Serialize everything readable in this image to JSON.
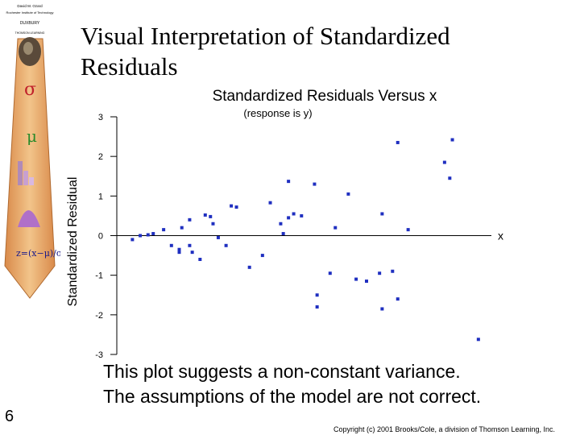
{
  "slide": {
    "title_line1": "Visual Interpretation of Standardized",
    "title_line2": "Residuals",
    "page_number": "6",
    "caption_line1": "This plot suggests a non-constant variance.",
    "caption_line2": "The assumptions of the model are not correct.",
    "copyright": "Copyright (c) 2001 Brooks/Cole, a division of Thomson Learning, Inc."
  },
  "logo": {
    "publisher_line1": "David M. Ozard",
    "publisher_line2": "Rochester Institute of Technology",
    "publisher_line3": "DUXBURY",
    "publisher_line4": "THOMSON LEARNING",
    "symbol_sigma": "σ",
    "symbol_mu": "μ"
  },
  "colors": {
    "points": "#1f2fc0",
    "tie_orange": "#e8b070",
    "tie_dark": "#c87a3c"
  },
  "chart_data": {
    "type": "scatter",
    "title": "Standardized Residuals Versus x",
    "subtitle": "(response is y)",
    "ylabel": "Standardized Residual",
    "xlabel": "x",
    "ylim": [
      -3,
      3
    ],
    "yticks": [
      "3",
      "2",
      "1",
      "0",
      "-1",
      "-2",
      "-3"
    ],
    "grid": false,
    "series": [
      {
        "points": [
          [
            1.0,
            -0.1
          ],
          [
            1.3,
            0.0
          ],
          [
            1.6,
            0.02
          ],
          [
            1.8,
            0.05
          ],
          [
            2.2,
            0.15
          ],
          [
            2.5,
            -0.25
          ],
          [
            2.8,
            -0.35
          ],
          [
            2.8,
            -0.42
          ],
          [
            2.9,
            0.2
          ],
          [
            3.2,
            -0.25
          ],
          [
            3.2,
            0.4
          ],
          [
            3.3,
            -0.42
          ],
          [
            3.6,
            -0.6
          ],
          [
            3.8,
            0.52
          ],
          [
            4.0,
            0.48
          ],
          [
            4.1,
            0.3
          ],
          [
            4.3,
            -0.05
          ],
          [
            4.6,
            -0.25
          ],
          [
            4.8,
            0.75
          ],
          [
            5.0,
            0.72
          ],
          [
            5.5,
            -0.8
          ],
          [
            6.0,
            -0.5
          ],
          [
            6.3,
            0.83
          ],
          [
            6.7,
            0.3
          ],
          [
            6.8,
            0.05
          ],
          [
            7.0,
            1.37
          ],
          [
            7.0,
            0.45
          ],
          [
            7.2,
            0.55
          ],
          [
            7.5,
            0.5
          ],
          [
            8.0,
            1.3
          ],
          [
            8.1,
            -1.5
          ],
          [
            8.1,
            -1.8
          ],
          [
            8.6,
            -0.95
          ],
          [
            8.8,
            0.2
          ],
          [
            9.3,
            1.05
          ],
          [
            9.6,
            -1.1
          ],
          [
            10.0,
            -1.15
          ],
          [
            10.5,
            -0.95
          ],
          [
            10.6,
            0.55
          ],
          [
            10.6,
            -1.85
          ],
          [
            11.0,
            -0.9
          ],
          [
            11.2,
            2.35
          ],
          [
            11.2,
            -1.6
          ],
          [
            11.6,
            0.15
          ],
          [
            13.0,
            1.85
          ],
          [
            13.2,
            1.45
          ],
          [
            13.3,
            2.42
          ],
          [
            14.3,
            -2.62
          ]
        ]
      }
    ]
  }
}
